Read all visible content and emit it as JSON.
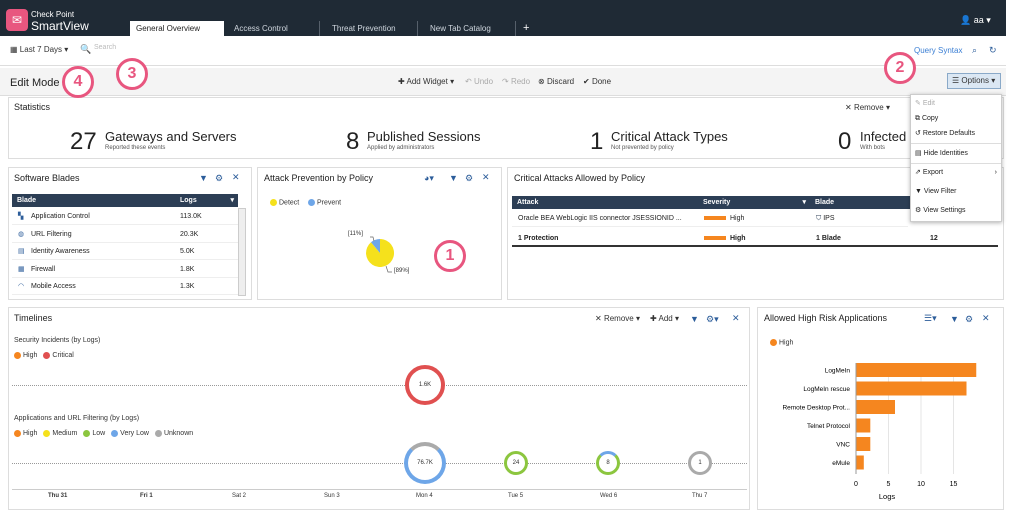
{
  "header": {
    "brand_top": "Check Point",
    "brand_bottom": "SmartView",
    "user": "aa",
    "tabs": [
      {
        "label": "General Overview"
      },
      {
        "label": "Access Control"
      },
      {
        "label": "Threat Prevention"
      },
      {
        "label": "New Tab Catalog"
      }
    ],
    "add_tab": "+"
  },
  "toolbar": {
    "time_range": "Last 7 Days",
    "search_placeholder": "Search",
    "query_syntax": "Query Syntax"
  },
  "editbar": {
    "mode": "Edit Mode",
    "add_widget": "Add Widget",
    "undo": "Undo",
    "redo": "Redo",
    "discard": "Discard",
    "done": "Done",
    "options": "Options"
  },
  "statistics": {
    "title": "Statistics",
    "remove": "Remove",
    "items": [
      {
        "value": "27",
        "title": "Gateways and Servers",
        "sub": "Reported these events"
      },
      {
        "value": "8",
        "title": "Published Sessions",
        "sub": "Applied by administrators"
      },
      {
        "value": "1",
        "title": "Critical Attack Types",
        "sub": "Not prevented by policy"
      },
      {
        "value": "0",
        "title": "Infected",
        "sub": "With bots"
      }
    ]
  },
  "software_blades": {
    "title": "Software Blades",
    "col_blade": "Blade",
    "col_logs": "Logs",
    "rows": [
      {
        "name": "Application Control",
        "logs": "113.0K"
      },
      {
        "name": "URL Filtering",
        "logs": "20.3K"
      },
      {
        "name": "Identity Awareness",
        "logs": "5.0K"
      },
      {
        "name": "Firewall",
        "logs": "1.8K"
      },
      {
        "name": "Mobile Access",
        "logs": "1.3K"
      }
    ]
  },
  "attack_prevention": {
    "title": "Attack Prevention by Policy",
    "legend_detect": "Detect",
    "legend_prevent": "Prevent",
    "label_small": "[11%]",
    "label_large": "[89%]",
    "colors": {
      "detect": "#f5e11c",
      "prevent": "#6ea6e8"
    }
  },
  "critical_attacks": {
    "title": "Critical Attacks Allowed by Policy",
    "col_attack": "Attack",
    "col_severity": "Severity",
    "col_blade": "Blade",
    "rows": [
      {
        "attack": "Oracle BEA WebLogic IIS connector JSESSIONID ...",
        "severity": "High",
        "blade": "IPS",
        "count": ""
      },
      {
        "attack": "1 Protection",
        "severity": "High",
        "blade": "1 Blade",
        "count": "12"
      }
    ]
  },
  "menu": {
    "items": [
      {
        "label": "Edit"
      },
      {
        "label": "Copy"
      },
      {
        "label": "Restore Defaults"
      },
      {
        "label": "Hide Identities"
      },
      {
        "label": "Export"
      },
      {
        "label": "View Filter"
      },
      {
        "label": "View Settings"
      }
    ]
  },
  "timelines": {
    "title": "Timelines",
    "remove": "Remove",
    "add": "Add",
    "sec_title": "Security Incidents (by Logs)",
    "sec_legend": [
      {
        "label": "High",
        "color": "#f5861f"
      },
      {
        "label": "Critical",
        "color": "#e05050"
      }
    ],
    "sec_bubble": "1.6K",
    "app_title": "Applications and URL Filtering (by Logs)",
    "app_legend": [
      {
        "label": "High",
        "color": "#f5861f"
      },
      {
        "label": "Medium",
        "color": "#f5e11c"
      },
      {
        "label": "Low",
        "color": "#8cc63f"
      },
      {
        "label": "Very Low",
        "color": "#6ea6e8"
      },
      {
        "label": "Unknown",
        "color": "#aaaaaa"
      }
    ],
    "app_bubbles": [
      {
        "label": "76.7K"
      },
      {
        "label": "24"
      },
      {
        "label": "8"
      },
      {
        "label": "1"
      }
    ],
    "days": [
      "Thu 31",
      "Fri 1",
      "Sat 2",
      "Sun 3",
      "Mon 4",
      "Tue 5",
      "Wed 6",
      "Thu 7"
    ]
  },
  "chart_data": {
    "type": "bar",
    "title": "Allowed High Risk Applications",
    "legend": "High",
    "xlabel": "Logs",
    "xlim": [
      0,
      20
    ],
    "xticks": [
      "0",
      "5",
      "10",
      "15"
    ],
    "categories": [
      "LogMeIn",
      "LogMeIn rescue",
      "Remote Desktop Prot...",
      "Telnet Protocol",
      "VNC",
      "eMule"
    ],
    "values": [
      18.5,
      17,
      6,
      2.2,
      2.2,
      1.2
    ],
    "color": "#f5861f"
  },
  "callouts": [
    "1",
    "2",
    "3",
    "4"
  ]
}
